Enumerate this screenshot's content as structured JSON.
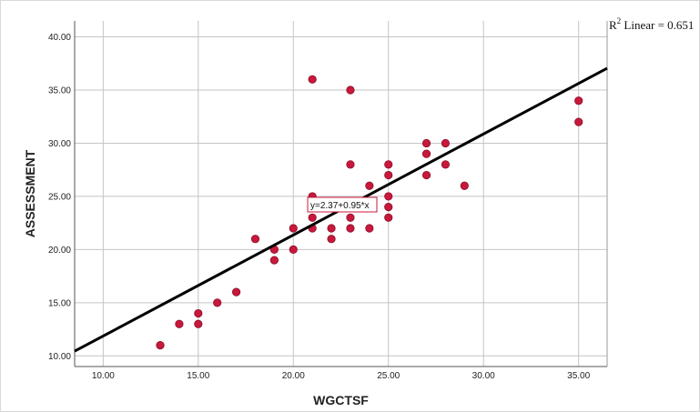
{
  "chart_data": {
    "type": "scatter",
    "xlabel": "WGCTSF",
    "ylabel": "ASSESSMENT",
    "xlim": [
      8.5,
      36.5
    ],
    "ylim": [
      9.0,
      41.5
    ],
    "x_ticks": [
      "10.00",
      "15.00",
      "20.00",
      "25.00",
      "30.00",
      "35.00"
    ],
    "y_ticks": [
      "10.00",
      "15.00",
      "20.00",
      "25.00",
      "30.00",
      "35.00",
      "40.00"
    ],
    "grid": true,
    "point_color": "#c8183c",
    "fit_line_color": "#000000",
    "points": [
      {
        "x": 13,
        "y": 11
      },
      {
        "x": 14,
        "y": 13
      },
      {
        "x": 15,
        "y": 13
      },
      {
        "x": 15,
        "y": 14
      },
      {
        "x": 16,
        "y": 15
      },
      {
        "x": 17,
        "y": 16
      },
      {
        "x": 18,
        "y": 21
      },
      {
        "x": 19,
        "y": 19
      },
      {
        "x": 19,
        "y": 20
      },
      {
        "x": 20,
        "y": 20
      },
      {
        "x": 20,
        "y": 22
      },
      {
        "x": 21,
        "y": 22
      },
      {
        "x": 21,
        "y": 23
      },
      {
        "x": 21,
        "y": 25
      },
      {
        "x": 21,
        "y": 36
      },
      {
        "x": 22,
        "y": 21
      },
      {
        "x": 22,
        "y": 22
      },
      {
        "x": 23,
        "y": 22
      },
      {
        "x": 23,
        "y": 23
      },
      {
        "x": 23,
        "y": 28
      },
      {
        "x": 23,
        "y": 35
      },
      {
        "x": 24,
        "y": 22
      },
      {
        "x": 24,
        "y": 26
      },
      {
        "x": 25,
        "y": 23
      },
      {
        "x": 25,
        "y": 24
      },
      {
        "x": 25,
        "y": 25
      },
      {
        "x": 25,
        "y": 27
      },
      {
        "x": 25,
        "y": 28
      },
      {
        "x": 27,
        "y": 27
      },
      {
        "x": 27,
        "y": 29
      },
      {
        "x": 27,
        "y": 30
      },
      {
        "x": 28,
        "y": 28
      },
      {
        "x": 28,
        "y": 30
      },
      {
        "x": 29,
        "y": 26
      },
      {
        "x": 35,
        "y": 32
      },
      {
        "x": 35,
        "y": 34
      }
    ],
    "fit_line": {
      "intercept": 2.37,
      "slope": 0.95
    },
    "equation_label": "y=2.37+0.95*x",
    "r2_label": {
      "prefix": "R",
      "superscript": "2",
      "suffix": " Linear = 0.651"
    }
  }
}
